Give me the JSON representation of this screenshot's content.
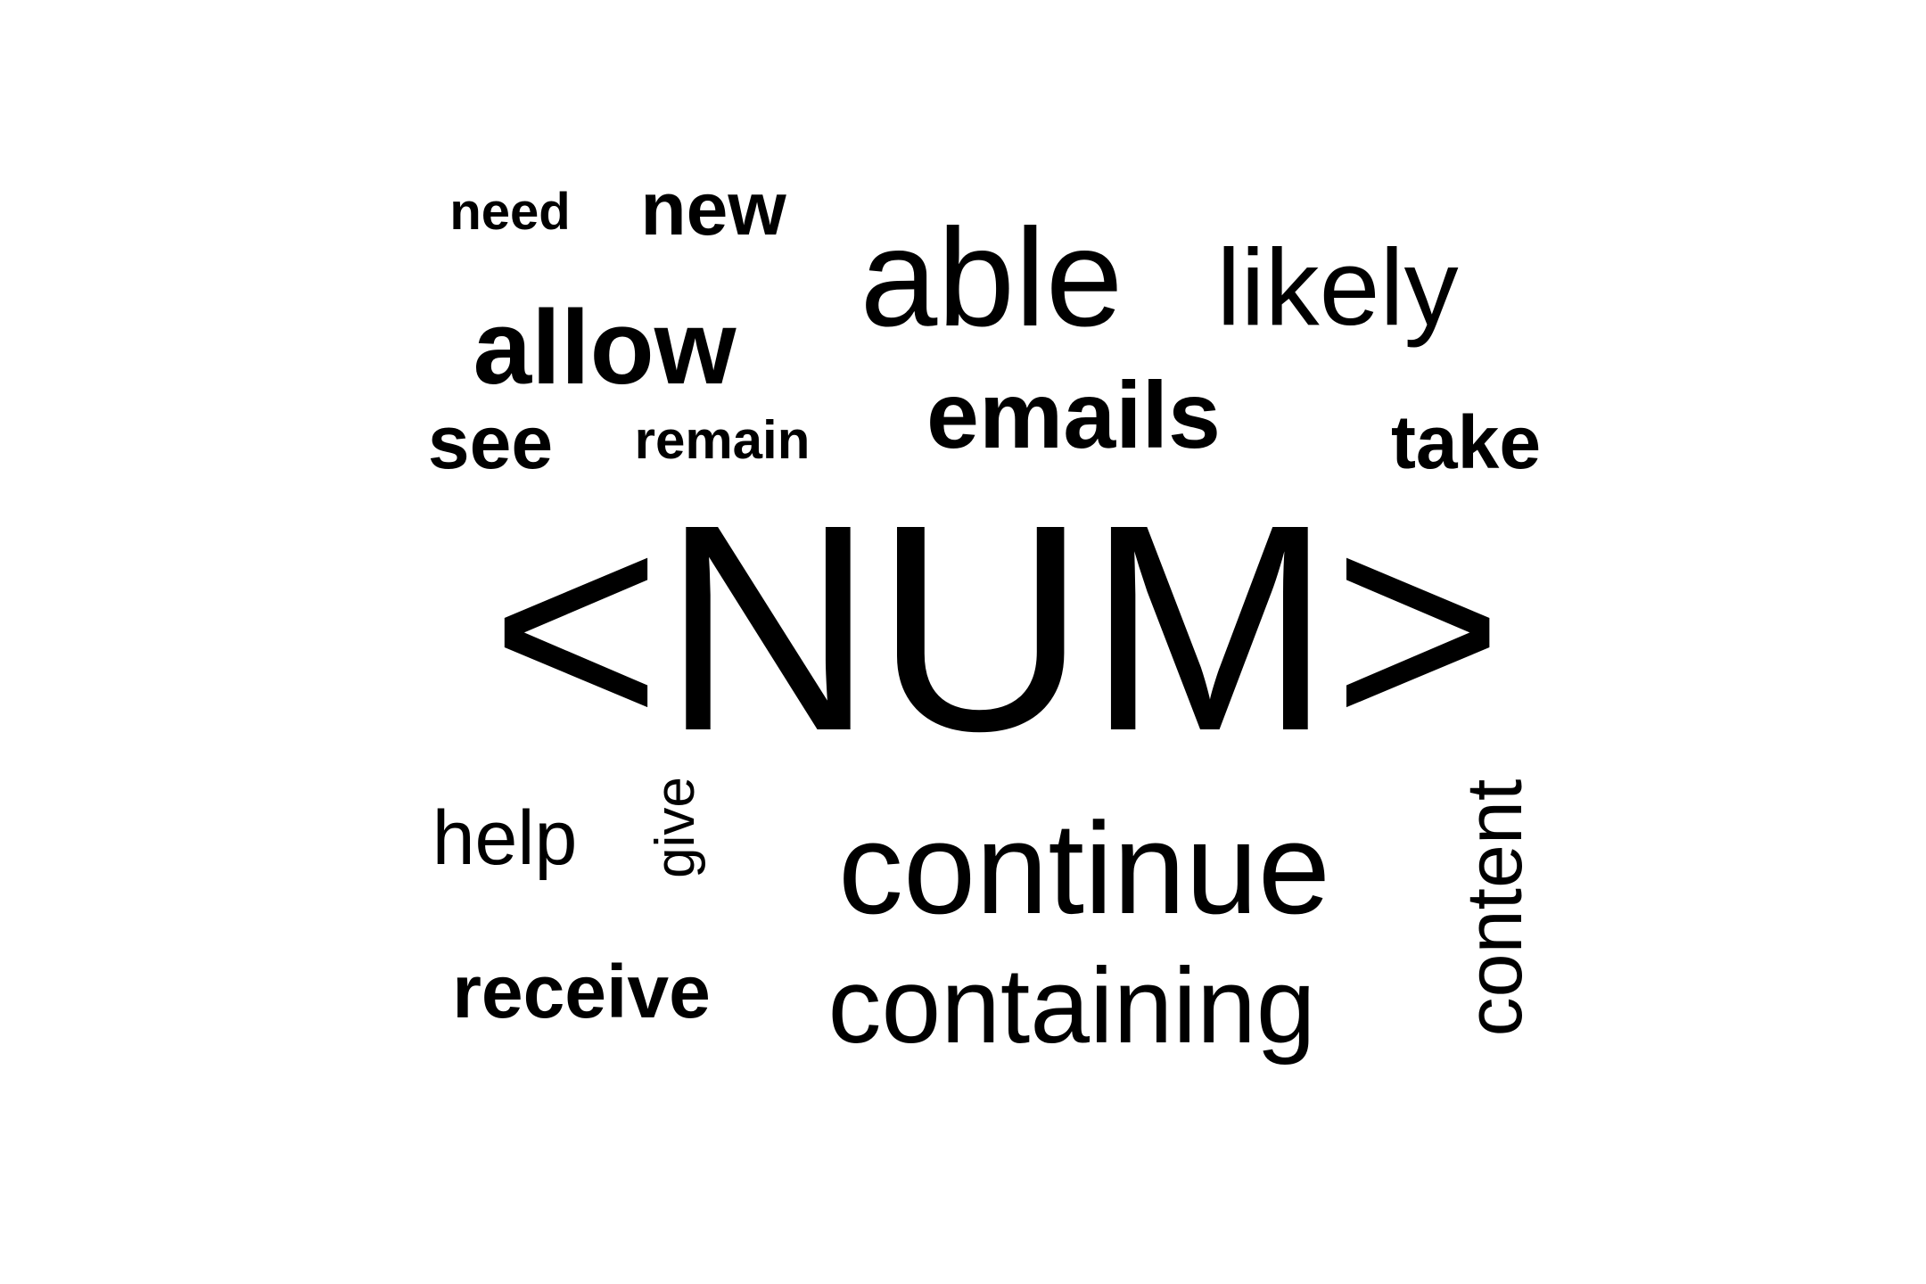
{
  "word_cloud": {
    "text_color": "#000000",
    "background_color": "#ffffff",
    "words": {
      "need": "need",
      "new": "new",
      "able": "able",
      "likely": "likely",
      "allow": "allow",
      "emails": "emails",
      "see": "see",
      "remain": "remain",
      "take": "take",
      "num": "<NUM>",
      "help": "help",
      "give": "give",
      "continue": "continue",
      "content": "content",
      "receive": "receive",
      "containing": "containing"
    }
  }
}
